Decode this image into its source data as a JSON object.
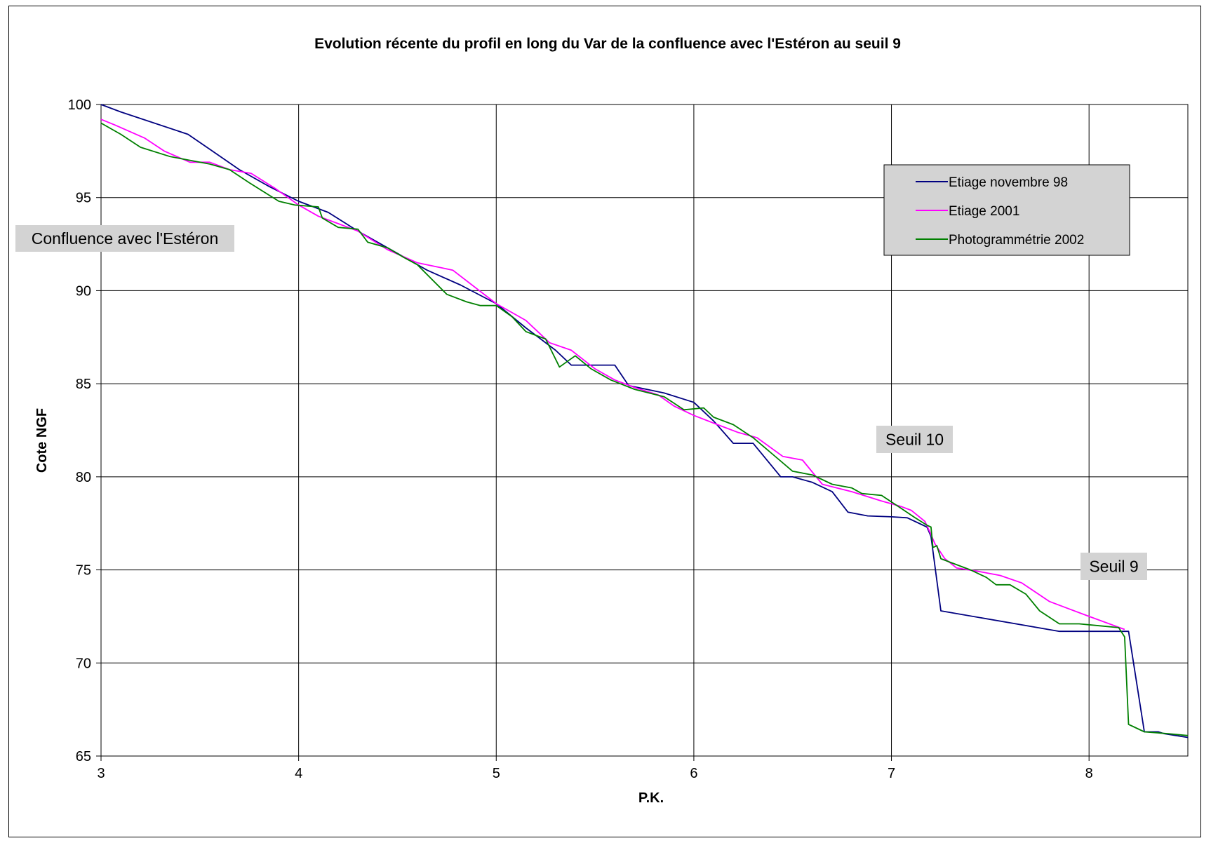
{
  "chart_data": {
    "type": "line",
    "title": "Evolution récente du profil en long du Var de la confluence avec l'Estéron au seuil 9",
    "xlabel": "P.K.",
    "ylabel": "Cote NGF",
    "xlim": [
      3,
      8.5
    ],
    "ylim": [
      65,
      100
    ],
    "x_ticks": [
      "3",
      "4",
      "5",
      "6",
      "7",
      "8"
    ],
    "y_ticks": [
      "65",
      "70",
      "75",
      "80",
      "85",
      "90",
      "95",
      "100"
    ],
    "grid": true,
    "legend_position": "top-right",
    "series": [
      {
        "name": "Etiage novembre 98",
        "color": "#000080",
        "points": [
          [
            3.0,
            100.0
          ],
          [
            3.1,
            99.6
          ],
          [
            3.44,
            98.4
          ],
          [
            3.55,
            97.6
          ],
          [
            3.7,
            96.5
          ],
          [
            3.85,
            95.6
          ],
          [
            4.0,
            94.8
          ],
          [
            4.15,
            94.2
          ],
          [
            4.3,
            93.2
          ],
          [
            4.5,
            92.0
          ],
          [
            4.65,
            91.1
          ],
          [
            4.82,
            90.3
          ],
          [
            5.0,
            89.3
          ],
          [
            5.15,
            88.0
          ],
          [
            5.3,
            86.8
          ],
          [
            5.38,
            86.0
          ],
          [
            5.45,
            86.0
          ],
          [
            5.6,
            86.0
          ],
          [
            5.67,
            84.9
          ],
          [
            5.85,
            84.5
          ],
          [
            6.0,
            84.0
          ],
          [
            6.1,
            83.0
          ],
          [
            6.2,
            81.8
          ],
          [
            6.3,
            81.8
          ],
          [
            6.44,
            80.0
          ],
          [
            6.5,
            80.0
          ],
          [
            6.6,
            79.7
          ],
          [
            6.7,
            79.2
          ],
          [
            6.78,
            78.1
          ],
          [
            6.88,
            77.9
          ],
          [
            7.0,
            77.85
          ],
          [
            7.08,
            77.8
          ],
          [
            7.18,
            77.3
          ],
          [
            7.2,
            76.8
          ],
          [
            7.25,
            72.8
          ],
          [
            7.85,
            71.7
          ],
          [
            8.0,
            71.7
          ],
          [
            8.2,
            71.7
          ],
          [
            8.28,
            66.3
          ],
          [
            8.35,
            66.3
          ],
          [
            8.38,
            66.2
          ],
          [
            8.5,
            66.0
          ]
        ]
      },
      {
        "name": "Etiage 2001",
        "color": "#ff00ff",
        "points": [
          [
            3.0,
            99.2
          ],
          [
            3.07,
            98.9
          ],
          [
            3.22,
            98.2
          ],
          [
            3.32,
            97.5
          ],
          [
            3.45,
            96.9
          ],
          [
            3.55,
            96.9
          ],
          [
            3.65,
            96.5
          ],
          [
            3.76,
            96.3
          ],
          [
            3.88,
            95.5
          ],
          [
            4.0,
            94.6
          ],
          [
            4.1,
            94.0
          ],
          [
            4.2,
            93.6
          ],
          [
            4.3,
            93.2
          ],
          [
            4.45,
            92.2
          ],
          [
            4.6,
            91.5
          ],
          [
            4.78,
            91.1
          ],
          [
            5.0,
            89.3
          ],
          [
            5.15,
            88.4
          ],
          [
            5.27,
            87.2
          ],
          [
            5.38,
            86.8
          ],
          [
            5.5,
            85.8
          ],
          [
            5.6,
            85.2
          ],
          [
            5.7,
            84.8
          ],
          [
            5.82,
            84.4
          ],
          [
            5.9,
            83.8
          ],
          [
            6.0,
            83.3
          ],
          [
            6.12,
            82.8
          ],
          [
            6.22,
            82.4
          ],
          [
            6.32,
            82.1
          ],
          [
            6.45,
            81.1
          ],
          [
            6.55,
            80.9
          ],
          [
            6.65,
            79.6
          ],
          [
            6.8,
            79.2
          ],
          [
            6.95,
            78.7
          ],
          [
            7.05,
            78.4
          ],
          [
            7.1,
            78.2
          ],
          [
            7.17,
            77.6
          ],
          [
            7.2,
            76.9
          ],
          [
            7.22,
            76.4
          ],
          [
            7.27,
            75.6
          ],
          [
            7.33,
            75.1
          ],
          [
            7.45,
            74.9
          ],
          [
            7.55,
            74.7
          ],
          [
            7.66,
            74.3
          ],
          [
            7.8,
            73.3
          ],
          [
            8.0,
            72.5
          ],
          [
            8.18,
            71.8
          ]
        ]
      },
      {
        "name": "Photogrammétrie 2002",
        "color": "#008000",
        "points": [
          [
            3.0,
            99.0
          ],
          [
            3.1,
            98.4
          ],
          [
            3.2,
            97.7
          ],
          [
            3.35,
            97.2
          ],
          [
            3.45,
            97.0
          ],
          [
            3.55,
            96.8
          ],
          [
            3.65,
            96.5
          ],
          [
            3.75,
            95.8
          ],
          [
            3.9,
            94.8
          ],
          [
            3.98,
            94.6
          ],
          [
            4.1,
            94.5
          ],
          [
            4.12,
            93.9
          ],
          [
            4.2,
            93.4
          ],
          [
            4.3,
            93.3
          ],
          [
            4.35,
            92.6
          ],
          [
            4.45,
            92.3
          ],
          [
            4.53,
            91.8
          ],
          [
            4.6,
            91.4
          ],
          [
            4.75,
            89.8
          ],
          [
            4.85,
            89.4
          ],
          [
            4.92,
            89.2
          ],
          [
            5.0,
            89.2
          ],
          [
            5.08,
            88.6
          ],
          [
            5.15,
            87.8
          ],
          [
            5.25,
            87.4
          ],
          [
            5.32,
            85.9
          ],
          [
            5.4,
            86.5
          ],
          [
            5.48,
            85.8
          ],
          [
            5.58,
            85.2
          ],
          [
            5.7,
            84.7
          ],
          [
            5.85,
            84.3
          ],
          [
            5.95,
            83.6
          ],
          [
            6.05,
            83.7
          ],
          [
            6.1,
            83.2
          ],
          [
            6.2,
            82.8
          ],
          [
            6.3,
            82.1
          ],
          [
            6.4,
            81.2
          ],
          [
            6.5,
            80.3
          ],
          [
            6.6,
            80.1
          ],
          [
            6.7,
            79.6
          ],
          [
            6.8,
            79.4
          ],
          [
            6.85,
            79.1
          ],
          [
            6.95,
            79.0
          ],
          [
            7.05,
            78.3
          ],
          [
            7.12,
            77.8
          ],
          [
            7.18,
            77.4
          ],
          [
            7.2,
            77.3
          ],
          [
            7.21,
            76.2
          ],
          [
            7.23,
            76.3
          ],
          [
            7.25,
            75.6
          ],
          [
            7.3,
            75.4
          ],
          [
            7.4,
            75.0
          ],
          [
            7.48,
            74.6
          ],
          [
            7.53,
            74.2
          ],
          [
            7.6,
            74.2
          ],
          [
            7.68,
            73.7
          ],
          [
            7.75,
            72.8
          ],
          [
            7.85,
            72.1
          ],
          [
            7.95,
            72.1
          ],
          [
            8.05,
            72.0
          ],
          [
            8.15,
            71.9
          ],
          [
            8.18,
            71.4
          ],
          [
            8.2,
            66.7
          ],
          [
            8.22,
            66.6
          ],
          [
            8.28,
            66.3
          ],
          [
            8.4,
            66.2
          ],
          [
            8.5,
            66.1
          ]
        ]
      }
    ],
    "annotations": [
      {
        "text": "Confluence avec l'Estéron"
      },
      {
        "text": "Seuil 10"
      },
      {
        "text": "Seuil 9"
      }
    ]
  }
}
